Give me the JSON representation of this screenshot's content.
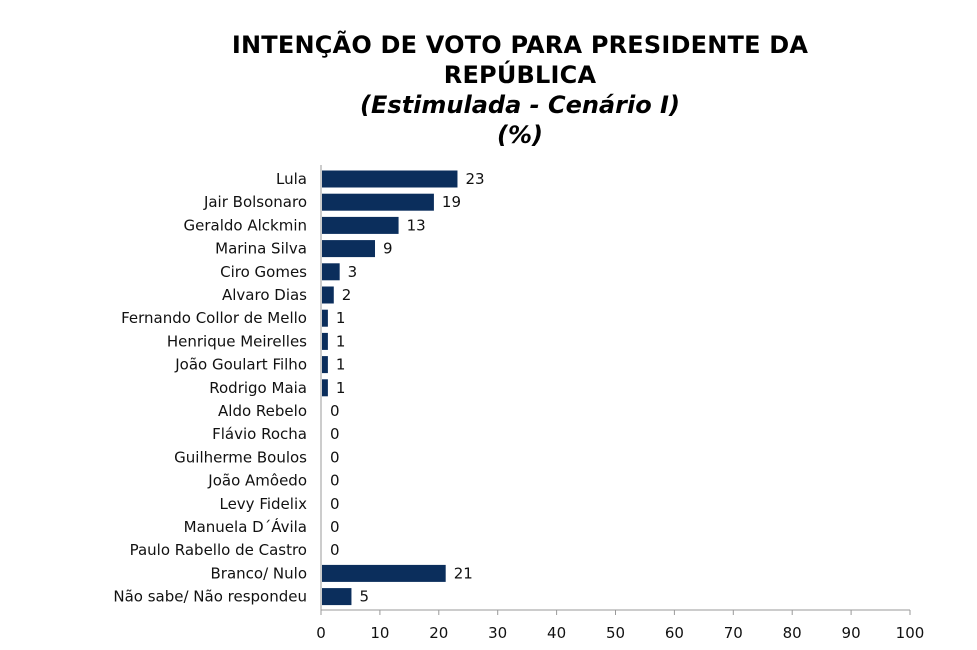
{
  "chart_data": {
    "type": "bar",
    "orientation": "horizontal",
    "title": "INTENÇÃO DE VOTO PARA PRESIDENTE DA REPÚBLICA",
    "subtitle": "(Estimulada - Cenário I)",
    "unit": "(%)",
    "categories": [
      "Lula",
      "Jair Bolsonaro",
      "Geraldo Alckmin",
      "Marina Silva",
      "Ciro Gomes",
      "Alvaro Dias",
      "Fernando Collor de Mello",
      "Henrique Meirelles",
      "João Goulart Filho",
      "Rodrigo Maia",
      "Aldo Rebelo",
      "Flávio Rocha",
      "Guilherme Boulos",
      "João Amôedo",
      "Levy Fidelix",
      "Manuela D´Ávila",
      "Paulo Rabello de Castro",
      "Branco/ Nulo",
      "Não sabe/ Não respondeu"
    ],
    "values": [
      23,
      19,
      13,
      9,
      3,
      2,
      1,
      1,
      1,
      1,
      0,
      0,
      0,
      0,
      0,
      0,
      0,
      21,
      5
    ],
    "xlim": [
      0,
      100
    ],
    "xticks": [
      0,
      10,
      20,
      30,
      40,
      50,
      60,
      70,
      80,
      90,
      100
    ],
    "grid": false,
    "legend": "none",
    "bar_color": "#0b2e5c"
  }
}
